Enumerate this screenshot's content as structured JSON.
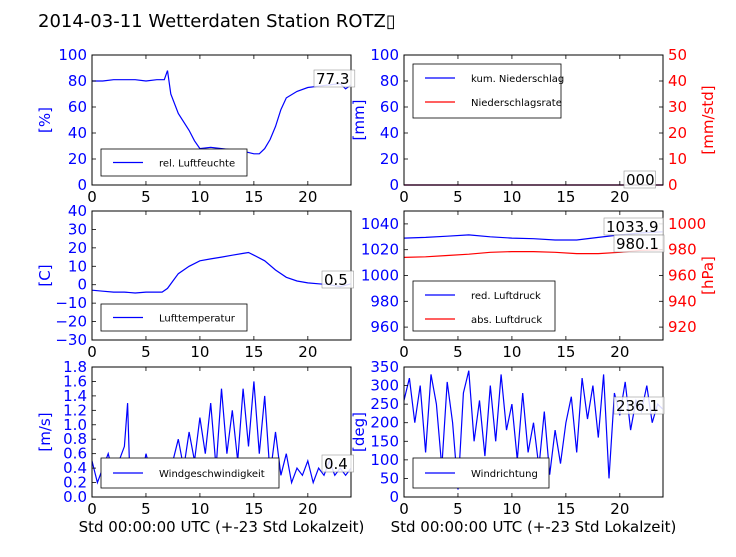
{
  "title": "2014-03-11 Wetterdaten Station ROTZ▯",
  "colors": {
    "blue": "#0000ff",
    "red": "#ff0000",
    "black": "#000000"
  },
  "chart_data": [
    {
      "type": "line",
      "ylabel": "[%]",
      "xlabel": "",
      "xlim": [
        0,
        24
      ],
      "ylim": [
        0,
        100
      ],
      "xticks": [
        "0",
        "5",
        "10",
        "15",
        "20"
      ],
      "yticks": [
        "0",
        "20",
        "40",
        "60",
        "80",
        "100"
      ],
      "value_label": "77.3",
      "legend_loc": "lower-left",
      "series": [
        {
          "name": "rel. Luftfeuchte",
          "color": "#0000ff",
          "x": [
            0,
            1,
            2,
            3,
            4,
            5,
            6,
            6.7,
            7,
            7.3,
            8,
            9,
            9.5,
            10,
            11,
            12,
            13,
            14,
            15,
            15.5,
            16,
            16.5,
            17,
            17.5,
            18,
            19,
            20,
            21,
            22,
            23,
            23.5,
            24
          ],
          "y": [
            80,
            80,
            81,
            81,
            81,
            80,
            81,
            81,
            88,
            70,
            55,
            42,
            34,
            28,
            29,
            28,
            27,
            26,
            24,
            24,
            28,
            35,
            45,
            58,
            67,
            72,
            75,
            76,
            77,
            78,
            74,
            77
          ]
        }
      ]
    },
    {
      "type": "line",
      "ylabel": "[mm]",
      "y2label": "[mm/std]",
      "xlabel": "",
      "xlim": [
        0,
        24
      ],
      "ylim": [
        0,
        100
      ],
      "y2lim": [
        0,
        50
      ],
      "xticks": [
        "0",
        "5",
        "10",
        "15",
        "20"
      ],
      "yticks": [
        "0",
        "20",
        "40",
        "60",
        "80",
        "100"
      ],
      "y2ticks": [
        "0",
        "10",
        "20",
        "30",
        "40",
        "50"
      ],
      "value_label": "000",
      "legend_loc": "upper-left",
      "series": [
        {
          "name": "kum. Niederschlag",
          "color": "#0000ff",
          "axis": "left",
          "x": [
            0,
            24
          ],
          "y": [
            0,
            0
          ]
        },
        {
          "name": "Niederschlagsrate",
          "color": "#ff0000",
          "axis": "right",
          "x": [
            0,
            24
          ],
          "y": [
            0,
            0
          ]
        }
      ]
    },
    {
      "type": "line",
      "ylabel": "[C]",
      "xlabel": "",
      "xlim": [
        0,
        24
      ],
      "ylim": [
        -30,
        40
      ],
      "xticks": [
        "0",
        "5",
        "10",
        "15",
        "20"
      ],
      "yticks": [
        "−30",
        "−20",
        "−10",
        "0",
        "10",
        "20",
        "30",
        "40"
      ],
      "value_label": "0.5",
      "legend_loc": "lower-left",
      "series": [
        {
          "name": "Lufttemperatur",
          "color": "#0000ff",
          "x": [
            0,
            1,
            2,
            3,
            4,
            5,
            6,
            6.5,
            7,
            7.5,
            8,
            9,
            10,
            11,
            12,
            13,
            14,
            14.5,
            15,
            16,
            17,
            18,
            19,
            20,
            21,
            22,
            23,
            24
          ],
          "y": [
            -3,
            -3.5,
            -4,
            -4,
            -4.5,
            -4,
            -4,
            -4,
            -2,
            2,
            6,
            10,
            13,
            14,
            15,
            16,
            17,
            17.5,
            16,
            13,
            8,
            4,
            2,
            1,
            0.5,
            0,
            -1,
            0.5
          ]
        }
      ]
    },
    {
      "type": "line",
      "ylabel": "",
      "y2label": "[hPa]",
      "xlabel": "",
      "xlim": [
        0,
        24
      ],
      "ylim": [
        950,
        1050
      ],
      "y2lim": [
        910,
        1010
      ],
      "xticks": [
        "0",
        "5",
        "10",
        "15",
        "20"
      ],
      "yticks": [
        "960",
        "980",
        "1000",
        "1020",
        "1040"
      ],
      "y2ticks": [
        "920",
        "940",
        "960",
        "980",
        "1000"
      ],
      "value_labels": [
        "1033.9",
        "980.1"
      ],
      "legend_loc": "lower-left",
      "series": [
        {
          "name": "red. Luftdruck",
          "color": "#0000ff",
          "axis": "left",
          "x": [
            0,
            2,
            4,
            6,
            8,
            10,
            12,
            14,
            16,
            18,
            20,
            22,
            24
          ],
          "y": [
            1029,
            1029.5,
            1030.5,
            1031.5,
            1030,
            1029,
            1028.5,
            1027.5,
            1027.5,
            1029.5,
            1031.5,
            1033,
            1033.9
          ]
        },
        {
          "name": "abs. Luftdruck",
          "color": "#ff0000",
          "axis": "right",
          "x": [
            0,
            2,
            4,
            6,
            8,
            10,
            12,
            14,
            16,
            18,
            20,
            22,
            24
          ],
          "y": [
            974,
            974.5,
            975.5,
            976.5,
            978,
            978.5,
            978.5,
            978,
            977,
            977,
            978,
            979.5,
            980.1
          ]
        }
      ]
    },
    {
      "type": "line",
      "ylabel": "[m/s]",
      "xlabel": "Std 00:00:00 UTC (+-23 Std Lokalzeit)",
      "xlim": [
        0,
        24
      ],
      "ylim": [
        0,
        1.8
      ],
      "xticks": [
        "0",
        "5",
        "10",
        "15",
        "20"
      ],
      "yticks": [
        "0.0",
        "0.2",
        "0.4",
        "0.6",
        "0.8",
        "1.0",
        "1.2",
        "1.4",
        "1.6",
        "1.8"
      ],
      "value_label": "0.4",
      "legend_loc": "lower-left",
      "series": [
        {
          "name": "Windgeschwindigkeit",
          "color": "#0000ff",
          "x": [
            0,
            0.5,
            1,
            1.5,
            2,
            2.5,
            3,
            3.3,
            3.5,
            4,
            4.5,
            5,
            5.5,
            6,
            6.5,
            7,
            7.5,
            8,
            8.5,
            9,
            9.5,
            10,
            10.5,
            11,
            11.5,
            12,
            12.5,
            13,
            13.5,
            14,
            14.5,
            15,
            15.5,
            16,
            16.5,
            17,
            17.5,
            18,
            18.5,
            19,
            19.5,
            20,
            20.5,
            21,
            21.5,
            22,
            22.5,
            23,
            23.5,
            24
          ],
          "y": [
            0.5,
            0.2,
            0.4,
            0.6,
            0.3,
            0.5,
            0.7,
            1.3,
            0.3,
            0.5,
            0.2,
            0.6,
            0.3,
            0.4,
            0.2,
            0.3,
            0.5,
            0.8,
            0.4,
            0.9,
            0.5,
            1.1,
            0.6,
            1.3,
            0.4,
            1.5,
            0.6,
            1.2,
            0.5,
            1.5,
            0.7,
            1.6,
            0.6,
            1.4,
            0.3,
            0.9,
            0.3,
            0.6,
            0.2,
            0.4,
            0.3,
            0.5,
            0.2,
            0.4,
            0.3,
            0.5,
            0.3,
            0.4,
            0.3,
            0.4
          ]
        }
      ]
    },
    {
      "type": "line",
      "ylabel": "[deg]",
      "xlabel": "Std 00:00:00 UTC (+-23 Std Lokalzeit)",
      "xlim": [
        0,
        24
      ],
      "ylim": [
        0,
        350
      ],
      "xticks": [
        "0",
        "5",
        "10",
        "15",
        "20"
      ],
      "yticks": [
        "0",
        "50",
        "100",
        "150",
        "200",
        "250",
        "300",
        "350"
      ],
      "value_label": "236.1",
      "legend_loc": "lower-left",
      "series": [
        {
          "name": "Windrichtung",
          "color": "#0000ff",
          "x": [
            0,
            0.5,
            1,
            1.5,
            2,
            2.5,
            3,
            3.5,
            4,
            4.5,
            5,
            5.5,
            6,
            6.5,
            7,
            7.5,
            8,
            8.5,
            9,
            9.5,
            10,
            10.5,
            11,
            11.5,
            12,
            12.5,
            13,
            13.5,
            14,
            14.5,
            15,
            15.5,
            16,
            16.5,
            17,
            17.5,
            18,
            18.5,
            19,
            19.5,
            20,
            20.5,
            21,
            21.5,
            22,
            22.5,
            23,
            23.5,
            24
          ],
          "y": [
            260,
            320,
            200,
            300,
            120,
            330,
            250,
            80,
            310,
            200,
            20,
            280,
            340,
            150,
            260,
            110,
            300,
            150,
            330,
            180,
            250,
            100,
            280,
            120,
            200,
            80,
            230,
            60,
            180,
            90,
            200,
            270,
            120,
            320,
            210,
            300,
            160,
            330,
            50,
            280,
            220,
            310,
            180,
            260,
            230,
            300,
            200,
            250,
            236
          ]
        }
      ]
    }
  ]
}
